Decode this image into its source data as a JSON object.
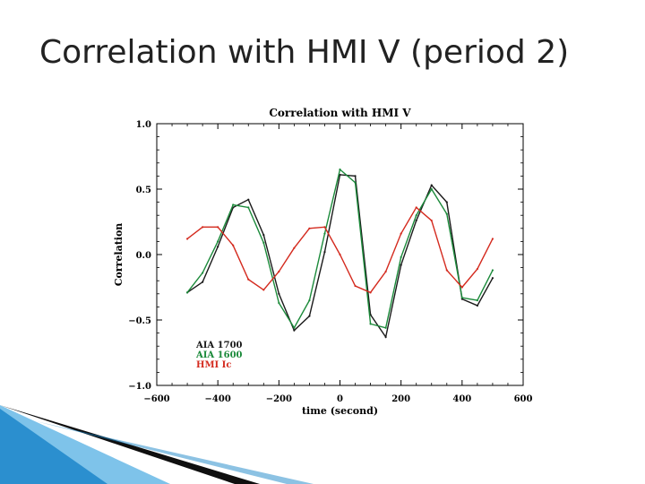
{
  "slide": {
    "title": "Correlation with HMI V (period 2)"
  },
  "colors": {
    "aia1700": "#1a1a1a",
    "aia1600": "#1b8a3a",
    "hmi_ic": "#d42a1e",
    "deco_blue": "#1a86c8"
  },
  "chart_data": {
    "type": "line",
    "title": "Correlation with HMI V",
    "xlabel": "time (second)",
    "ylabel": "Correlation",
    "xlim": [
      -600,
      600
    ],
    "ylim": [
      -1.0,
      1.0
    ],
    "xticks": [
      -600,
      -400,
      -200,
      0,
      200,
      400,
      600
    ],
    "xtick_labels": [
      "−600",
      "−400",
      "−200",
      "0",
      "200",
      "400",
      "600"
    ],
    "yticks": [
      -1.0,
      -0.5,
      0.0,
      0.5,
      1.0
    ],
    "ytick_labels": [
      "−1.0",
      "−0.5",
      "0.0",
      "0.5",
      "1.0"
    ],
    "grid": false,
    "legend_position": "bottom-left",
    "x": [
      -500,
      -450,
      -400,
      -350,
      -300,
      -250,
      -200,
      -150,
      -100,
      -50,
      0,
      50,
      100,
      150,
      200,
      250,
      300,
      350,
      400,
      450,
      500
    ],
    "series": [
      {
        "name": "AIA 1700",
        "color_key": "aia1700",
        "values": [
          -0.29,
          -0.21,
          0.06,
          0.36,
          0.42,
          0.15,
          -0.3,
          -0.58,
          -0.47,
          0.02,
          0.61,
          0.6,
          -0.46,
          -0.63,
          -0.08,
          0.26,
          0.53,
          0.4,
          -0.34,
          -0.39,
          -0.18
        ]
      },
      {
        "name": "AIA 1600",
        "color_key": "aia1600",
        "values": [
          -0.29,
          -0.14,
          0.1,
          0.38,
          0.36,
          0.09,
          -0.37,
          -0.56,
          -0.35,
          0.16,
          0.65,
          0.55,
          -0.53,
          -0.56,
          -0.02,
          0.3,
          0.5,
          0.31,
          -0.33,
          -0.35,
          -0.12
        ]
      },
      {
        "name": "HMI Ic",
        "color_key": "hmi_ic",
        "values": [
          0.12,
          0.21,
          0.21,
          0.07,
          -0.19,
          -0.27,
          -0.13,
          0.05,
          0.2,
          0.21,
          0.0,
          -0.24,
          -0.29,
          -0.13,
          0.16,
          0.36,
          0.26,
          -0.12,
          -0.25,
          -0.11,
          0.12
        ]
      }
    ]
  }
}
